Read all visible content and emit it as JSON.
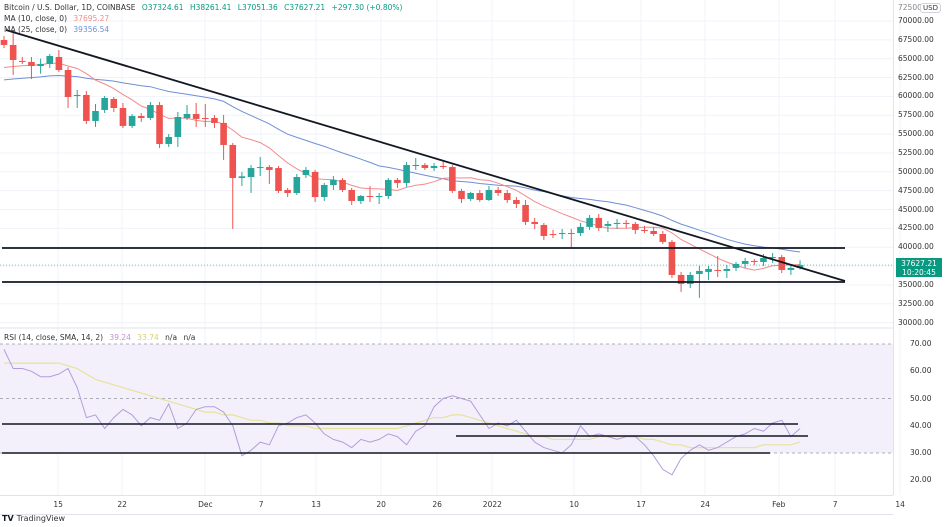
{
  "header": {
    "symbol": "Bitcoin / U.S. Dollar, 1D, COINBASE",
    "open": "O37324.61",
    "high": "H38261.41",
    "low": "L37051.36",
    "close": "C37627.21",
    "change": "+297.30 (+0.80%)",
    "ma10_label": "MA (10, close, 0)",
    "ma10_value": "37695.27",
    "ma25_label": "MA (25, close, 0)",
    "ma25_value": "39356.54"
  },
  "rsi_legend": {
    "label": "RSI (14, close, SMA, 14, 2)",
    "rsi_value": "39.24",
    "sma_value": "33.74",
    "na1": "n/a",
    "na2": "n/a"
  },
  "price_axis": {
    "currency": "USD",
    "top_partial": "72500.00",
    "ticks": [
      "70000.00",
      "67500.00",
      "65000.00",
      "62500.00",
      "60000.00",
      "57500.00",
      "55000.00",
      "52500.00",
      "50000.00",
      "47500.00",
      "45000.00",
      "42500.00",
      "40000.00",
      "35000.00",
      "32500.00",
      "30000.00"
    ],
    "last_price": "37627.21",
    "countdown": "10:20:45"
  },
  "rsi_axis": {
    "ticks": [
      "70.00",
      "60.00",
      "50.00",
      "40.00",
      "30.00",
      "20.00"
    ]
  },
  "time_axis": {
    "ticks": [
      "15",
      "22",
      "Dec",
      "7",
      "13",
      "20",
      "26",
      "2022",
      "10",
      "17",
      "24",
      "Feb",
      "7",
      "14"
    ]
  },
  "footer": {
    "brand": "TradingView"
  },
  "colors": {
    "up": "#26a69a",
    "down": "#ef5350",
    "ma10": "#f28b8b",
    "ma25": "#6f8fd6",
    "rsi": "#b39ddb",
    "rsi_sma": "#e6e39a",
    "rsi_band": "#f3f0fb",
    "trendline": "#131722",
    "last_price_bg": "#089981"
  },
  "chart_data": [
    {
      "type": "candlestick",
      "title": "Bitcoin / U.S. Dollar, 1D, COINBASE",
      "ylabel": "USD",
      "ylim": [
        29000,
        72500
      ],
      "x_start": "2021-11-09",
      "x_end": "2022-02-04",
      "candles_ohlc": [
        [
          67480,
          68010,
          66420,
          66820
        ],
        [
          66820,
          68800,
          62840,
          64830
        ],
        [
          64700,
          65230,
          64300,
          64600
        ],
        [
          64560,
          65230,
          62300,
          64030
        ],
        [
          64030,
          65000,
          63000,
          64300
        ],
        [
          64300,
          65620,
          63760,
          65360
        ],
        [
          65230,
          66150,
          63240,
          63500
        ],
        [
          63500,
          63900,
          58460,
          59920
        ],
        [
          60050,
          60850,
          58460,
          60190
        ],
        [
          60190,
          60720,
          56340,
          56740
        ],
        [
          56740,
          59000,
          55940,
          58070
        ],
        [
          58200,
          60050,
          57800,
          59790
        ],
        [
          59660,
          59920,
          57930,
          58460
        ],
        [
          58460,
          59130,
          55810,
          56080
        ],
        [
          56080,
          57670,
          55810,
          57400
        ],
        [
          57400,
          57800,
          56610,
          57140
        ],
        [
          57140,
          59260,
          56870,
          58860
        ],
        [
          58860,
          59260,
          53160,
          53690
        ],
        [
          53690,
          55010,
          53290,
          54620
        ],
        [
          54620,
          57930,
          53290,
          57270
        ],
        [
          57140,
          58860,
          56870,
          57670
        ],
        [
          57670,
          59130,
          55940,
          57010
        ],
        [
          57140,
          58990,
          55940,
          57010
        ],
        [
          57140,
          57540,
          55810,
          56480
        ],
        [
          56480,
          57540,
          51570,
          53560
        ],
        [
          53560,
          53820,
          42420,
          49180
        ],
        [
          49180,
          49980,
          48120,
          49400
        ],
        [
          49310,
          50900,
          47190,
          50500
        ],
        [
          50500,
          51970,
          49440,
          50630
        ],
        [
          50630,
          50900,
          48380,
          50240
        ],
        [
          50500,
          50770,
          47190,
          47460
        ],
        [
          47590,
          47860,
          46660,
          47190
        ],
        [
          47190,
          49710,
          46930,
          49310
        ],
        [
          49580,
          50630,
          49180,
          50240
        ],
        [
          49980,
          50240,
          46000,
          46660
        ],
        [
          46660,
          48520,
          46130,
          48250
        ],
        [
          48250,
          49440,
          47590,
          48920
        ],
        [
          48920,
          49180,
          47330,
          47590
        ],
        [
          47590,
          47860,
          45600,
          46130
        ],
        [
          46130,
          46930,
          45730,
          46790
        ],
        [
          46790,
          48120,
          46000,
          46660
        ],
        [
          46660,
          47190,
          45730,
          46790
        ],
        [
          46790,
          49180,
          46400,
          48920
        ],
        [
          48920,
          49180,
          47860,
          48520
        ],
        [
          48520,
          51300,
          47990,
          50900
        ],
        [
          50770,
          51840,
          50240,
          50900
        ],
        [
          50900,
          51170,
          50240,
          50500
        ],
        [
          50500,
          51170,
          50110,
          50770
        ],
        [
          50770,
          51440,
          50370,
          50630
        ],
        [
          50630,
          50900,
          47190,
          47460
        ],
        [
          47460,
          47730,
          45870,
          46400
        ],
        [
          46400,
          47330,
          46130,
          47190
        ],
        [
          47190,
          47590,
          46000,
          46260
        ],
        [
          46260,
          48120,
          46130,
          47590
        ],
        [
          47590,
          47990,
          46790,
          47190
        ],
        [
          47190,
          47590,
          45870,
          46260
        ],
        [
          46260,
          46660,
          45200,
          45730
        ],
        [
          45600,
          46260,
          42950,
          43350
        ],
        [
          43350,
          43880,
          42420,
          43080
        ],
        [
          42950,
          43220,
          40960,
          41490
        ],
        [
          41750,
          42290,
          41220,
          41620
        ],
        [
          41750,
          42420,
          41090,
          41880
        ],
        [
          41880,
          42420,
          39900,
          41750
        ],
        [
          41880,
          43220,
          41490,
          42690
        ],
        [
          42690,
          44270,
          42290,
          43880
        ],
        [
          43880,
          44410,
          42150,
          42550
        ],
        [
          42820,
          43480,
          42020,
          43080
        ],
        [
          43080,
          43750,
          42420,
          43220
        ],
        [
          43220,
          43610,
          42550,
          43080
        ],
        [
          43080,
          43350,
          41750,
          42290
        ],
        [
          42290,
          42820,
          41880,
          42150
        ],
        [
          42150,
          42690,
          41490,
          41750
        ],
        [
          41750,
          42150,
          40430,
          40700
        ],
        [
          40700,
          40960,
          35920,
          36320
        ],
        [
          36320,
          36720,
          34070,
          35130
        ],
        [
          35130,
          36720,
          34600,
          36320
        ],
        [
          36450,
          37510,
          33280,
          36850
        ],
        [
          36720,
          37510,
          35660,
          37110
        ],
        [
          36980,
          38830,
          36050,
          36850
        ],
        [
          36850,
          37640,
          35920,
          37110
        ],
        [
          37250,
          38040,
          36850,
          37780
        ],
        [
          37780,
          38570,
          37250,
          38170
        ],
        [
          38170,
          38440,
          37640,
          38040
        ],
        [
          38040,
          39100,
          37510,
          38570
        ],
        [
          38570,
          39230,
          37910,
          38700
        ],
        [
          38700,
          38970,
          36580,
          36980
        ],
        [
          36980,
          37640,
          36320,
          37250
        ],
        [
          37250,
          38261,
          37051,
          37627
        ]
      ],
      "moving_averages": [
        {
          "name": "MA (10, close, 0)",
          "last": 37695.27
        },
        {
          "name": "MA (25, close, 0)",
          "last": 39356.54
        }
      ],
      "drawings": [
        {
          "type": "trendline",
          "from": [
            "2021-11-10",
            69000
          ],
          "to": [
            "2022-02-07",
            35600
          ]
        },
        {
          "type": "horizontal",
          "price": 39900,
          "x_range": [
            "2021-11-09",
            "2022-02-07"
          ]
        },
        {
          "type": "horizontal",
          "price": 35600,
          "x_range": [
            "2021-11-09",
            "2022-02-07"
          ]
        }
      ]
    },
    {
      "type": "line",
      "title": "RSI (14, close, SMA, 14, 2)",
      "ylim": [
        17,
        72
      ],
      "bands": {
        "upper": 70,
        "middle": 50,
        "lower": 30
      },
      "series": [
        {
          "name": "RSI",
          "last": 39.24,
          "values": [
            68,
            61,
            61,
            60,
            58,
            58,
            59,
            61,
            54,
            43,
            44,
            39,
            43,
            46,
            44,
            40,
            43,
            42,
            48,
            39,
            41,
            46,
            47,
            47,
            45,
            40,
            29,
            31,
            34,
            33,
            40,
            41,
            43,
            44,
            41,
            37,
            35,
            34,
            32,
            35,
            34,
            35,
            37,
            36,
            33,
            38,
            40,
            47,
            50,
            51,
            50,
            49,
            44,
            39,
            41,
            40,
            42,
            38,
            34,
            32,
            31,
            30,
            33,
            40,
            36,
            37,
            36,
            35,
            36,
            36,
            33,
            29,
            24,
            22,
            28,
            31,
            33,
            31,
            32,
            34,
            36,
            37,
            39,
            38,
            41,
            42,
            36,
            39
          ]
        },
        {
          "name": "SMA",
          "last": 33.74,
          "values": [
            63,
            63,
            63,
            63,
            63,
            63,
            63,
            62,
            61,
            59,
            57,
            56,
            55,
            54,
            53,
            52,
            51,
            50,
            49,
            48,
            47,
            46,
            45,
            45,
            44,
            44,
            43,
            42,
            42,
            41,
            41,
            40,
            40,
            40,
            39,
            39,
            39,
            39,
            39,
            39,
            39,
            39,
            39,
            39,
            40,
            41,
            42,
            43,
            43,
            44,
            44,
            43,
            42,
            41,
            40,
            39,
            38,
            37,
            36,
            36,
            35,
            35,
            35,
            35,
            35,
            36,
            36,
            36,
            36,
            36,
            35,
            35,
            34,
            33,
            33,
            32,
            32,
            32,
            32,
            32,
            32,
            32,
            32,
            33,
            33,
            33,
            33,
            34
          ]
        }
      ],
      "drawings": [
        {
          "type": "horizontal",
          "value": 41
        },
        {
          "type": "horizontal",
          "value": 36.5
        },
        {
          "type": "horizontal",
          "value": 30
        }
      ]
    }
  ]
}
